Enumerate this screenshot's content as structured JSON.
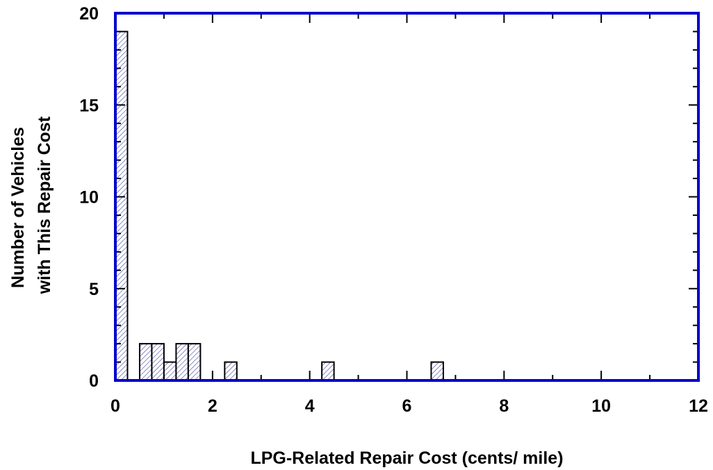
{
  "chart_data": {
    "type": "bar",
    "subtype": "histogram",
    "xlabel": "LPG-Related Repair Cost (cents/ mile)",
    "ylabel_lines": [
      "Number of Vehicles",
      "with This Repair Cost"
    ],
    "xlim": [
      0,
      12
    ],
    "ylim": [
      0,
      20
    ],
    "x_ticks": [
      "0",
      "2",
      "4",
      "6",
      "8",
      "10",
      "12"
    ],
    "y_ticks": [
      "0",
      "5",
      "10",
      "15",
      "20"
    ],
    "bins": [
      {
        "x0": 0.0,
        "x1": 0.25,
        "count": 19
      },
      {
        "x0": 0.5,
        "x1": 0.75,
        "count": 2
      },
      {
        "x0": 0.75,
        "x1": 1.0,
        "count": 2
      },
      {
        "x0": 1.0,
        "x1": 1.25,
        "count": 1
      },
      {
        "x0": 1.25,
        "x1": 1.5,
        "count": 2
      },
      {
        "x0": 1.5,
        "x1": 1.75,
        "count": 2
      },
      {
        "x0": 2.25,
        "x1": 2.5,
        "count": 1
      },
      {
        "x0": 4.25,
        "x1": 4.5,
        "count": 1
      },
      {
        "x0": 6.5,
        "x1": 6.75,
        "count": 1
      }
    ],
    "grid": false,
    "legend": "none",
    "colors": {
      "frame": "#0000cc",
      "bar_edge": "#000000",
      "bar_hatch": "#5050a0"
    }
  }
}
